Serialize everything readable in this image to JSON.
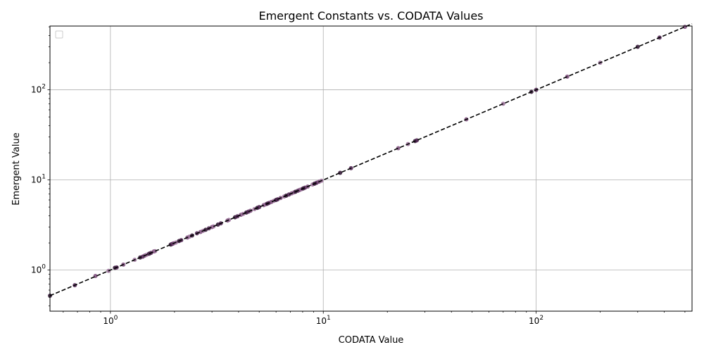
{
  "chart_data": {
    "type": "scatter",
    "title": "Emergent Constants vs. CODATA Values",
    "xlabel": "CODATA Value",
    "ylabel": "Emergent Value",
    "xscale": "log",
    "yscale": "log",
    "xlim": [
      0.52,
      540
    ],
    "ylim": [
      0.35,
      510
    ],
    "grid": true,
    "legend": "top-left",
    "x_ticks": [
      {
        "value": 1,
        "base": "10",
        "exp": "0"
      },
      {
        "value": 10,
        "base": "10",
        "exp": "1"
      },
      {
        "value": 100,
        "base": "10",
        "exp": "2"
      }
    ],
    "y_ticks": [
      {
        "value": 1,
        "base": "10",
        "exp": "0"
      },
      {
        "value": 10,
        "base": "10",
        "exp": "1"
      },
      {
        "value": 100,
        "base": "10",
        "exp": "2"
      }
    ],
    "reference_line": {
      "style": "dashed",
      "color": "#000000",
      "from": 0.52,
      "to": 540
    },
    "marker_colors": [
      "#2d0f2f",
      "#4e2150",
      "#7b4a7a",
      "#9a6f99"
    ],
    "points": [
      [
        0.52,
        0.52
      ],
      [
        0.68,
        0.68
      ],
      [
        0.85,
        0.86
      ],
      [
        0.98,
        0.98
      ],
      [
        1.05,
        1.06
      ],
      [
        1.07,
        1.07
      ],
      [
        1.15,
        1.15
      ],
      [
        1.3,
        1.3
      ],
      [
        1.38,
        1.38
      ],
      [
        1.42,
        1.41
      ],
      [
        1.45,
        1.45
      ],
      [
        1.48,
        1.48
      ],
      [
        1.52,
        1.52
      ],
      [
        1.55,
        1.55
      ],
      [
        1.6,
        1.61
      ],
      [
        1.62,
        1.62
      ],
      [
        1.92,
        1.92
      ],
      [
        1.95,
        1.95
      ],
      [
        1.98,
        1.98
      ],
      [
        2.03,
        2.02
      ],
      [
        2.1,
        2.1
      ],
      [
        2.15,
        2.15
      ],
      [
        2.3,
        2.3
      ],
      [
        2.35,
        2.35
      ],
      [
        2.42,
        2.42
      ],
      [
        2.55,
        2.56
      ],
      [
        2.65,
        2.65
      ],
      [
        2.72,
        2.72
      ],
      [
        2.8,
        2.8
      ],
      [
        2.9,
        2.9
      ],
      [
        3.0,
        3.0
      ],
      [
        3.05,
        3.05
      ],
      [
        3.2,
        3.2
      ],
      [
        3.3,
        3.3
      ],
      [
        3.55,
        3.55
      ],
      [
        3.6,
        3.6
      ],
      [
        3.85,
        3.85
      ],
      [
        3.95,
        3.95
      ],
      [
        4.1,
        4.1
      ],
      [
        4.2,
        4.2
      ],
      [
        4.35,
        4.35
      ],
      [
        4.45,
        4.45
      ],
      [
        4.55,
        4.55
      ],
      [
        4.75,
        4.75
      ],
      [
        4.9,
        4.9
      ],
      [
        5.0,
        5.0
      ],
      [
        5.25,
        5.25
      ],
      [
        5.35,
        5.35
      ],
      [
        5.45,
        5.45
      ],
      [
        5.55,
        5.55
      ],
      [
        5.7,
        5.7
      ],
      [
        5.85,
        5.85
      ],
      [
        6.0,
        6.0
      ],
      [
        6.1,
        6.1
      ],
      [
        6.3,
        6.3
      ],
      [
        6.55,
        6.55
      ],
      [
        6.7,
        6.7
      ],
      [
        6.9,
        6.9
      ],
      [
        7.1,
        7.1
      ],
      [
        7.25,
        7.25
      ],
      [
        7.4,
        7.4
      ],
      [
        7.6,
        7.6
      ],
      [
        7.75,
        7.75
      ],
      [
        7.9,
        7.9
      ],
      [
        8.05,
        8.05
      ],
      [
        8.2,
        8.2
      ],
      [
        8.45,
        8.45
      ],
      [
        8.9,
        8.9
      ],
      [
        9.1,
        9.1
      ],
      [
        9.3,
        9.3
      ],
      [
        9.55,
        9.55
      ],
      [
        9.8,
        9.8
      ],
      [
        12,
        12
      ],
      [
        13.5,
        13.5
      ],
      [
        22.5,
        22.5
      ],
      [
        25,
        25
      ],
      [
        27,
        27
      ],
      [
        27.5,
        27.5
      ],
      [
        47,
        47
      ],
      [
        70,
        70
      ],
      [
        95,
        95
      ],
      [
        100,
        100
      ],
      [
        140,
        140
      ],
      [
        200,
        200
      ],
      [
        300,
        300
      ],
      [
        380,
        380
      ],
      [
        500,
        500
      ]
    ]
  }
}
